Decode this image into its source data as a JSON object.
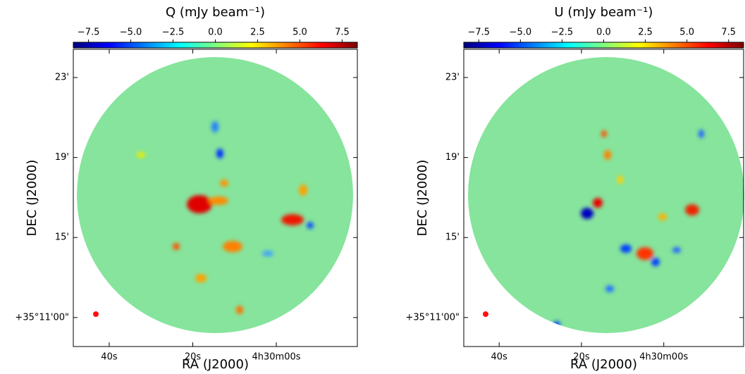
{
  "chart_data": [
    {
      "type": "image",
      "colorbar_label": "Q (mJy beam⁻¹)",
      "colormap": "jet",
      "clim": [
        -8.4,
        8.4
      ],
      "cticks": [
        {
          "value": -7.5,
          "label": "−7.5"
        },
        {
          "value": -5,
          "label": "−5.0"
        },
        {
          "value": -2.5,
          "label": "−2.5"
        },
        {
          "value": 0,
          "label": "0.0"
        },
        2.5,
        {
          "value": 5,
          "label": "5.0"
        },
        7.5
      ],
      "xlabel": "RA (J2000)",
      "ylabel": "DEC (J2000)",
      "xlim": [
        48.6,
        -19.4
      ],
      "xticks": [
        {
          "value": 40,
          "label": "40s"
        },
        {
          "value": 20,
          "label": "20s"
        },
        {
          "value": 0,
          "label": "4h30m00s"
        }
      ],
      "ylim": [
        9.55,
        24.41
      ],
      "yticks": [
        {
          "value": 11,
          "label": "+35°11'00\""
        },
        {
          "value": 15,
          "label": "15'"
        },
        {
          "value": 19,
          "label": "19'"
        },
        {
          "value": 23,
          "label": "23'"
        }
      ]
    },
    {
      "type": "image",
      "colorbar_label": "U (mJy beam⁻¹)",
      "colormap": "jet",
      "clim": [
        -8.4,
        8.4
      ],
      "cticks": [
        {
          "value": -7.5,
          "label": "−7.5"
        },
        {
          "value": -5,
          "label": "−5.0"
        },
        {
          "value": -2.5,
          "label": "−2.5"
        },
        {
          "value": 0,
          "label": "0.0"
        },
        2.5,
        {
          "value": 5,
          "label": "5.0"
        },
        7.5
      ],
      "xlabel": "RA (J2000)",
      "ylabel": "DEC (J2000)",
      "xlim": [
        48.6,
        -19.4
      ],
      "xticks": [
        {
          "value": 40,
          "label": "40s"
        },
        {
          "value": 20,
          "label": "20s"
        },
        {
          "value": 0,
          "label": "4h30m00s"
        }
      ],
      "ylim": [
        9.55,
        24.41
      ],
      "yticks": [
        {
          "value": 11,
          "label": "+35°11'00\""
        },
        {
          "value": 15,
          "label": "15'"
        },
        {
          "value": 19,
          "label": "19'"
        },
        {
          "value": 23,
          "label": "23'"
        }
      ]
    }
  ]
}
